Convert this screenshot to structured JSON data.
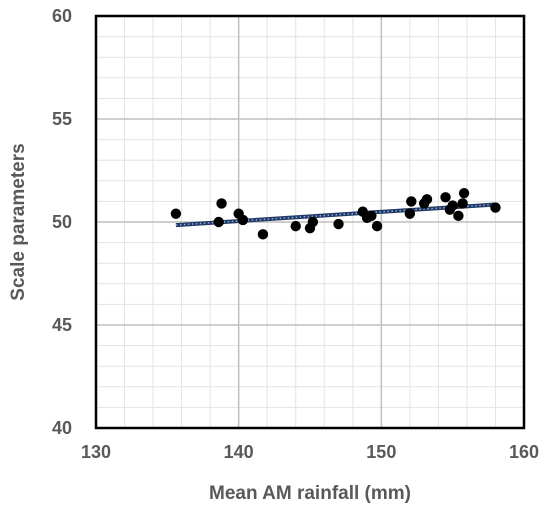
{
  "chart_data": {
    "type": "scatter",
    "title": "",
    "xlabel": "Mean AM rainfall (mm)",
    "ylabel": "Scale parameters",
    "xlim": [
      130,
      160
    ],
    "ylim": [
      40,
      60
    ],
    "x_ticks": [
      "130",
      "140",
      "150",
      "160"
    ],
    "y_ticks": [
      "40",
      "45",
      "50",
      "55",
      "60"
    ],
    "grid": true,
    "minor_grid": true,
    "legend": "none",
    "colors": {
      "points": "#000000",
      "trendline": "#1f3864",
      "trendline_dots": "#8faadc",
      "grid_major": "#bfbfbf",
      "grid_minor": "#e3e3e3",
      "tick_text": "#595959"
    },
    "series": [
      {
        "x": [
          135.6,
          138.6,
          138.8,
          140.0,
          140.3,
          141.7,
          144.0,
          145.0,
          145.2,
          147.0,
          148.7,
          149.0,
          149.3,
          149.7,
          152.0,
          152.1,
          153.0,
          153.2,
          154.5,
          154.8,
          155.0,
          155.4,
          155.7,
          155.8,
          158.0
        ],
        "y": [
          50.4,
          50.0,
          50.9,
          50.4,
          50.1,
          49.4,
          49.8,
          49.7,
          50.0,
          49.9,
          50.5,
          50.2,
          50.3,
          49.8,
          50.4,
          51.0,
          50.9,
          51.1,
          51.2,
          50.6,
          50.8,
          50.3,
          50.9,
          51.4,
          50.7
        ]
      }
    ],
    "trendline": {
      "type": "linear",
      "x": [
        135.6,
        158.0
      ],
      "y": [
        49.85,
        50.85
      ]
    }
  }
}
